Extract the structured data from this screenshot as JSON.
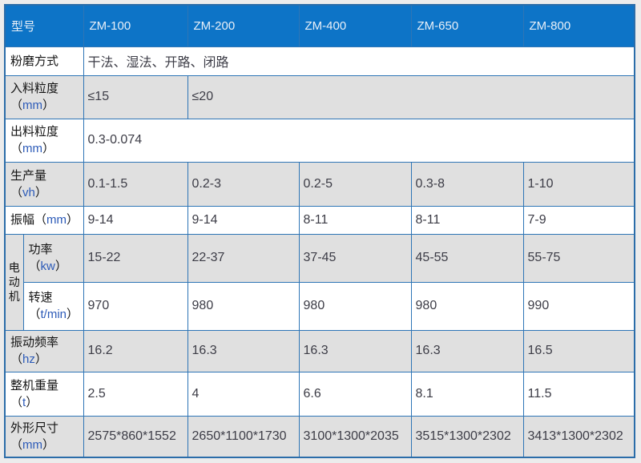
{
  "colors": {
    "page_background": "#ececec",
    "header_background": "#0d74c7",
    "header_text": "#e9f0f8",
    "grid_border": "#2e75b6",
    "row_gray": "#e0e0e0",
    "row_white": "#ffffff",
    "label_text": "#141414",
    "value_text": "#3c3c46",
    "unit_text": "#2d5bb8"
  },
  "table": {
    "paren_open": "（",
    "paren_close": "）",
    "header": {
      "label": "型号",
      "models": [
        "ZM-100",
        "ZM-200",
        "ZM-400",
        "ZM-650",
        "ZM-800"
      ]
    },
    "group": {
      "label": "电动机",
      "span_rows": 2
    },
    "rows": [
      {
        "label": "粉磨方式",
        "unit": "",
        "shade": "white",
        "cells": [
          {
            "text": "干法、湿法、开路、闭路",
            "span": 5
          }
        ]
      },
      {
        "label": "入料粒度",
        "unit": "mm",
        "shade": "gray",
        "cells": [
          {
            "text": "≤15",
            "span": 1
          },
          {
            "text": "≤20",
            "span": 4
          }
        ]
      },
      {
        "label": "出料粒度",
        "unit": "mm",
        "shade": "white",
        "cells": [
          {
            "text": "0.3-0.074",
            "span": 5
          }
        ]
      },
      {
        "label": "生产量",
        "unit": "vh",
        "shade": "gray",
        "cells": [
          {
            "text": "0.1-1.5",
            "span": 1
          },
          {
            "text": "0.2-3",
            "span": 1
          },
          {
            "text": "0.2-5",
            "span": 1
          },
          {
            "text": "0.3-8",
            "span": 1
          },
          {
            "text": "1-10",
            "span": 1
          }
        ]
      },
      {
        "label": "振幅",
        "unit": "mm",
        "unit_inline": true,
        "shade": "white",
        "cells": [
          {
            "text": "9-14",
            "span": 1
          },
          {
            "text": "9-14",
            "span": 1
          },
          {
            "text": "8-11",
            "span": 1
          },
          {
            "text": "8-11",
            "span": 1
          },
          {
            "text": "7-9",
            "span": 1
          }
        ]
      },
      {
        "label": "功率",
        "unit": "kw",
        "shade": "gray",
        "in_group": "start",
        "cells": [
          {
            "text": "15-22",
            "span": 1
          },
          {
            "text": "22-37",
            "span": 1
          },
          {
            "text": "37-45",
            "span": 1
          },
          {
            "text": "45-55",
            "span": 1
          },
          {
            "text": "55-75",
            "span": 1
          }
        ]
      },
      {
        "label": "转速",
        "unit": "t/min",
        "shade": "white",
        "in_group": "cont",
        "cells": [
          {
            "text": "970",
            "span": 1
          },
          {
            "text": "980",
            "span": 1
          },
          {
            "text": "980",
            "span": 1
          },
          {
            "text": "980",
            "span": 1
          },
          {
            "text": "990",
            "span": 1
          }
        ]
      },
      {
        "label": "振动频率",
        "unit": "hz",
        "shade": "gray",
        "cells": [
          {
            "text": "16.2",
            "span": 1
          },
          {
            "text": "16.3",
            "span": 1
          },
          {
            "text": "16.3",
            "span": 1
          },
          {
            "text": "16.3",
            "span": 1
          },
          {
            "text": "16.5",
            "span": 1
          }
        ]
      },
      {
        "label": "整机重量",
        "unit": "t",
        "shade": "white",
        "cells": [
          {
            "text": "2.5",
            "span": 1
          },
          {
            "text": "4",
            "span": 1
          },
          {
            "text": "6.6",
            "span": 1
          },
          {
            "text": "8.1",
            "span": 1
          },
          {
            "text": "11.5",
            "span": 1
          }
        ]
      },
      {
        "label": "外形尺寸",
        "unit": "mm",
        "shade": "gray",
        "cells": [
          {
            "text": "2575*860*1552",
            "span": 1
          },
          {
            "text": "2650*1100*1730",
            "span": 1
          },
          {
            "text": "3100*1300*2035",
            "span": 1
          },
          {
            "text": "3515*1300*2302",
            "span": 1
          },
          {
            "text": "3413*1300*2302",
            "span": 1
          }
        ]
      }
    ]
  }
}
